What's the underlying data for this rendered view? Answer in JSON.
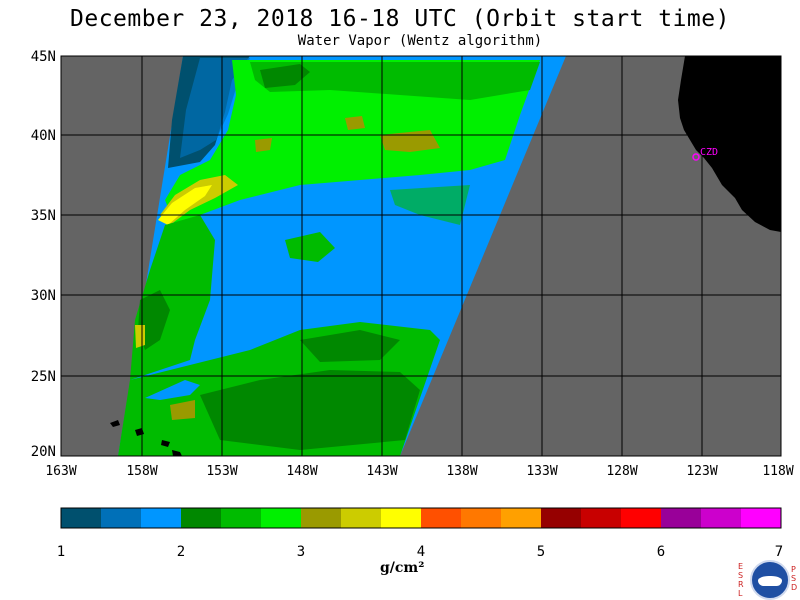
{
  "header": {
    "title": "December 23, 2018  16-18 UTC  (Orbit start time)",
    "subtitle": "Water Vapor (Wentz algorithm)"
  },
  "map": {
    "lat_labels": [
      "45N",
      "40N",
      "35N",
      "30N",
      "25N",
      "20N"
    ],
    "lon_labels": [
      "163W",
      "158W",
      "153W",
      "148W",
      "143W",
      "138W",
      "133W",
      "128W",
      "123W",
      "118W"
    ],
    "station_label": "CZD",
    "colors": {
      "no_data": "#646464",
      "land": "#000000",
      "station": "#ff00ff"
    }
  },
  "colorbar": {
    "tick_labels": [
      "1",
      "2",
      "3",
      "4",
      "5",
      "6",
      "7"
    ],
    "units": "g/cm²",
    "colors": [
      "#00506e",
      "#0070b8",
      "#0096ff",
      "#008800",
      "#00bb00",
      "#00f000",
      "#9a9a00",
      "#cccc00",
      "#ffff00",
      "#ff5000",
      "#ff7800",
      "#ffa000",
      "#960000",
      "#c80000",
      "#ff0000",
      "#990099",
      "#cc00cc",
      "#ff00ff"
    ]
  },
  "branding": {
    "left_letters": "ESRL",
    "right_letters": "PSD",
    "logo_text": "NOAA"
  }
}
